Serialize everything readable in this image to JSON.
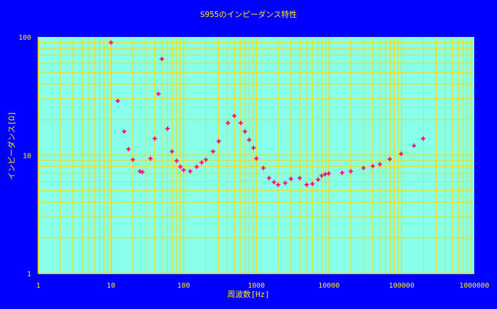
{
  "chart_data": {
    "type": "scatter",
    "title": "S955のインピーダンス特性",
    "xlabel": "周波数[Hz]",
    "ylabel": "インピーダンス[Ω]",
    "xscale": "log",
    "yscale": "log",
    "xlim": [
      1,
      1000000
    ],
    "ylim": [
      1,
      100
    ],
    "xticks": [
      "1",
      "10",
      "100",
      "1000",
      "10000",
      "100000",
      "1000000"
    ],
    "yticks": [
      "1",
      "10",
      "100"
    ],
    "grid": true,
    "colors": {
      "background": "#0000ff",
      "plot": "#88ffe8",
      "grid": "#ffd800",
      "marker": "#ff1177",
      "text": "#ffee00"
    },
    "series": [
      {
        "name": "S955",
        "x": [
          10,
          12.4,
          15.2,
          17.4,
          20,
          25,
          27,
          35,
          40,
          45,
          50,
          60,
          69,
          80,
          90,
          100,
          123,
          151,
          177,
          202,
          254,
          304,
          407,
          498,
          610,
          698,
          799,
          914,
          1000,
          1250,
          1500,
          1750,
          2000,
          2500,
          3000,
          3950,
          4940,
          5920,
          7080,
          7930,
          8870,
          9930,
          15200,
          20000,
          29900,
          40100,
          50200,
          68700,
          98600,
          148000,
          198000
        ],
        "y": [
          91,
          29.2,
          16.1,
          11.4,
          9.3,
          7.4,
          7.3,
          9.5,
          14.0,
          33.5,
          66,
          17.0,
          10.9,
          9.1,
          8.1,
          7.6,
          7.4,
          8.1,
          8.8,
          9.3,
          10.9,
          13.3,
          19.0,
          21.8,
          19.0,
          16.1,
          13.7,
          11.7,
          9.5,
          7.9,
          6.5,
          6.0,
          5.7,
          5.9,
          6.4,
          6.5,
          5.7,
          5.8,
          6.3,
          6.8,
          7.0,
          7.1,
          7.2,
          7.4,
          7.9,
          8.2,
          8.5,
          9.4,
          10.4,
          12.2,
          14.0
        ]
      }
    ]
  }
}
